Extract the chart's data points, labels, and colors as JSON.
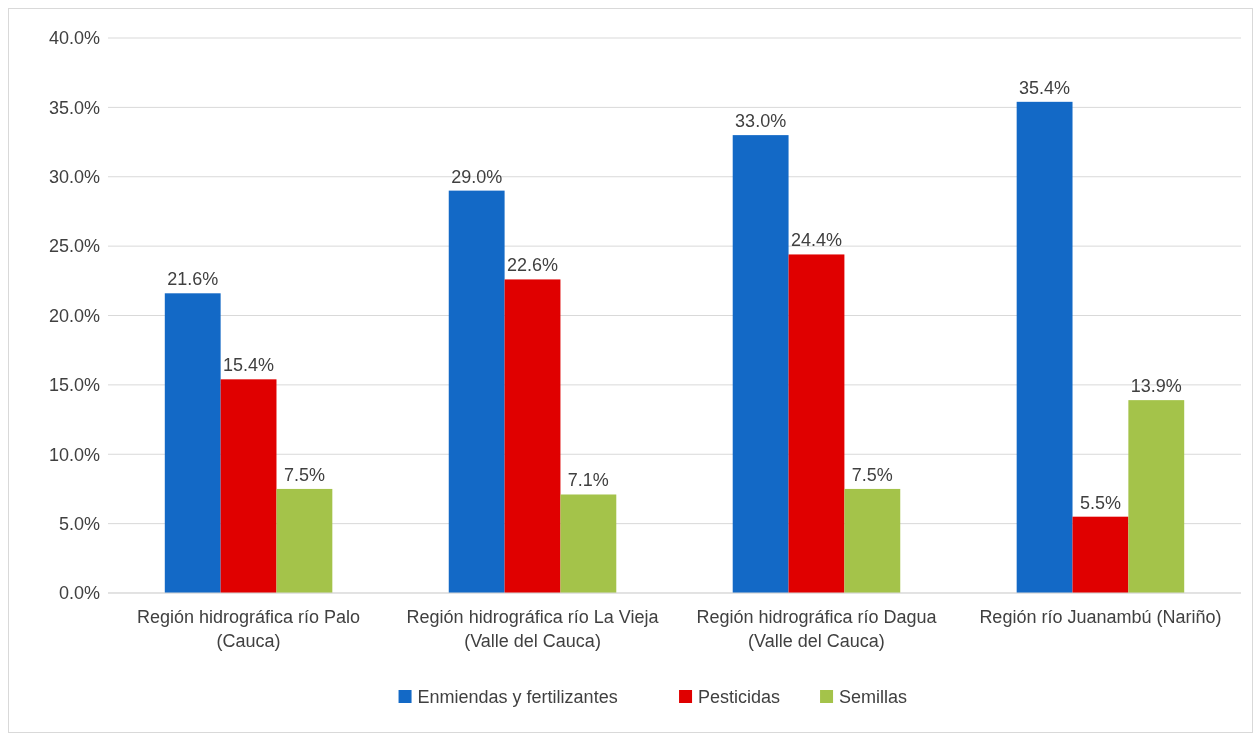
{
  "chart_data": {
    "type": "bar",
    "categories": [
      "Región hidrográfica río Palo (Cauca)",
      "Región hidrográfica río La Vieja (Valle del Cauca)",
      "Región hidrográfica río Dagua (Valle del Cauca)",
      "Región río Juanambú (Nariño)"
    ],
    "series": [
      {
        "name": "Enmiendas y fertilizantes",
        "color": "#1369c6",
        "values": [
          21.6,
          29.0,
          33.0,
          35.4
        ],
        "value_labels": [
          "21.6%",
          "29.0%",
          "33.0%",
          "35.4%"
        ]
      },
      {
        "name": "Pesticidas",
        "color": "#e00000",
        "values": [
          15.4,
          22.6,
          24.4,
          5.5
        ],
        "value_labels": [
          "15.4%",
          "22.6%",
          "24.4%",
          "5.5%"
        ]
      },
      {
        "name": "Semillas",
        "color": "#a4c34a",
        "values": [
          7.5,
          7.1,
          7.5,
          13.9
        ],
        "value_labels": [
          "7.5%",
          "7.1%",
          "7.5%",
          "13.9%"
        ]
      }
    ],
    "ylim": [
      0,
      40
    ],
    "yticks": [
      {
        "value": 0,
        "label": "0.0%"
      },
      {
        "value": 5,
        "label": "5.0%"
      },
      {
        "value": 10,
        "label": "10.0%"
      },
      {
        "value": 15,
        "label": "15.0%"
      },
      {
        "value": 20,
        "label": "20.0%"
      },
      {
        "value": 25,
        "label": "25.0%"
      },
      {
        "value": 30,
        "label": "30.0%"
      },
      {
        "value": 35,
        "label": "35.0%"
      },
      {
        "value": 40,
        "label": "40.0%"
      }
    ],
    "grid": "y",
    "legend": "bottom"
  }
}
